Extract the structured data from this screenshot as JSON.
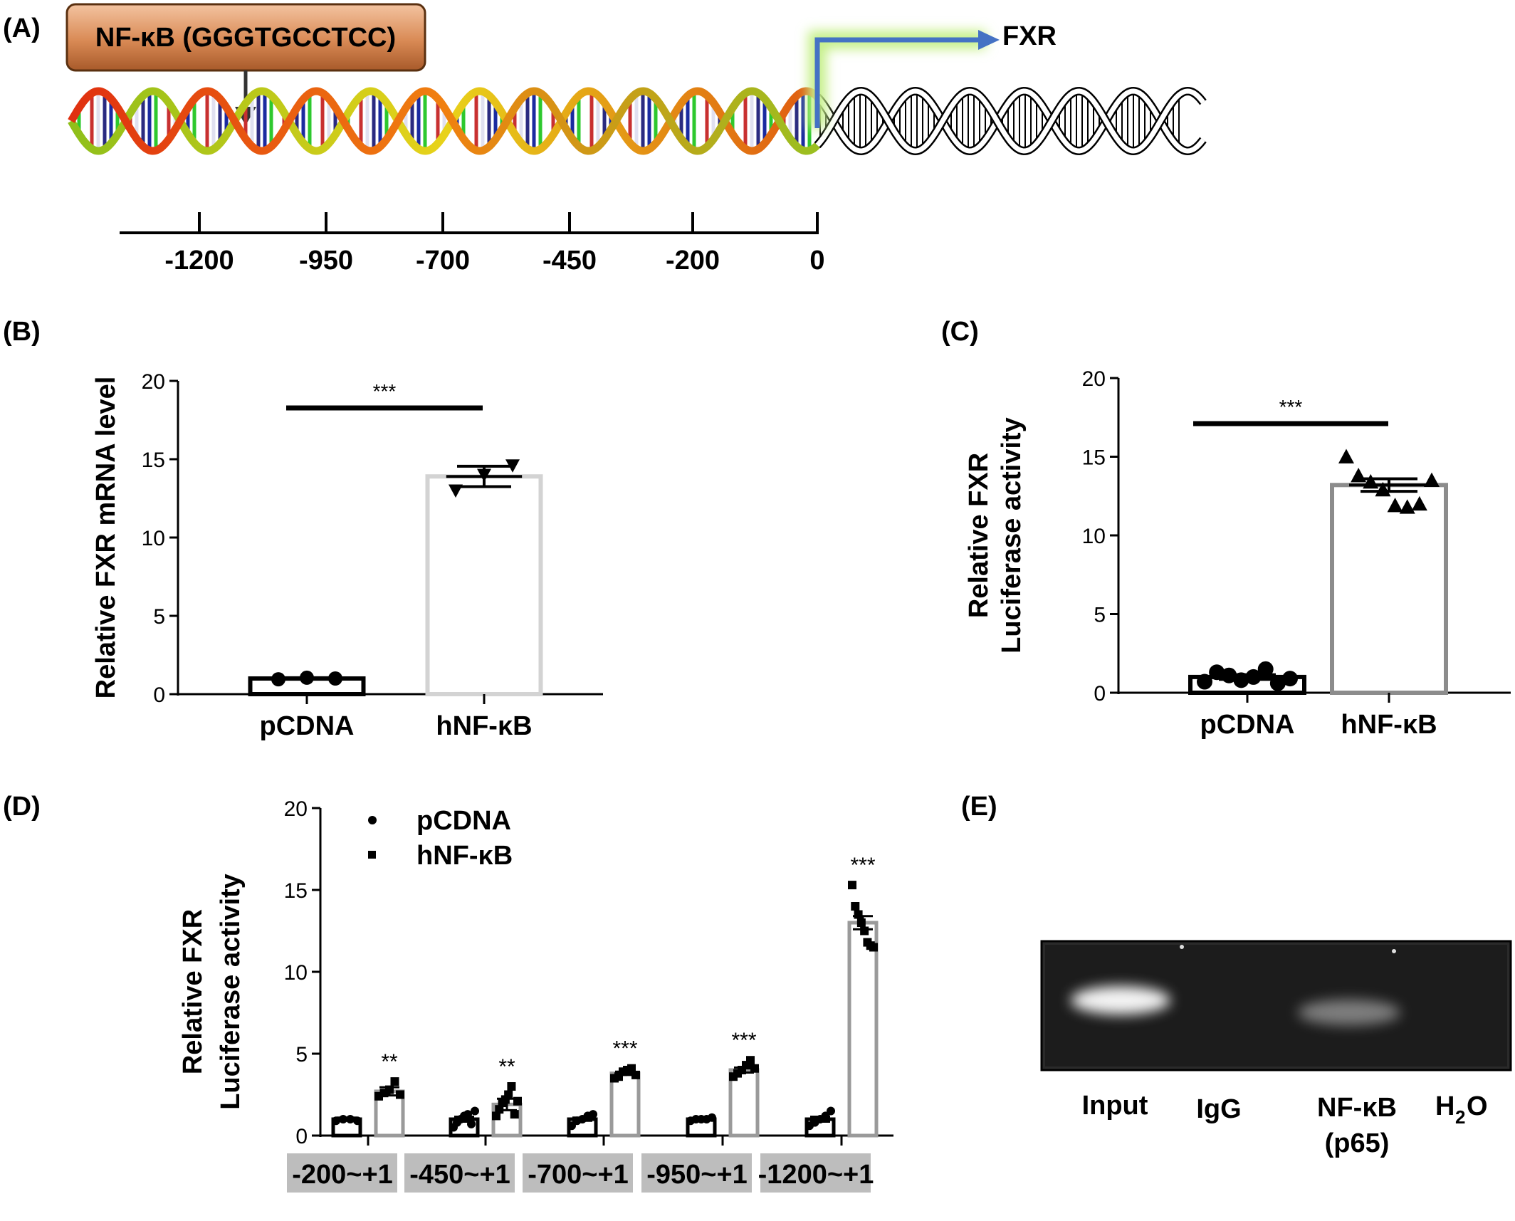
{
  "panels": {
    "A": {
      "label": "(A)",
      "tf_box": "NF-κB (GGGTGCCTCC)",
      "gene": "FXR",
      "ruler_ticks": [
        "-1200",
        "-950",
        "-700",
        "-450",
        "-200",
        "0"
      ]
    },
    "B": {
      "label": "(B)"
    },
    "C": {
      "label": "(C)"
    },
    "D": {
      "label": "(D)"
    },
    "E": {
      "label": "(E)",
      "lanes": [
        "Input",
        "IgG",
        "NF-κB",
        "H",
        "O"
      ],
      "lane_sub": "(p65)",
      "h2o_subscript": "2"
    }
  },
  "colors": {
    "tf_box_fill": "#d98a55",
    "arrow_blue": "#4472c4",
    "glow_green": "#c6f08a",
    "bar_black": "#000000",
    "bar_light_gray": "#d3d3d3",
    "bar_gray": "#8c8c8c",
    "label_bg_gray": "#bdbdbd",
    "gel_bg": "#2a2a2a"
  },
  "chart_data": [
    {
      "panel": "B",
      "type": "bar",
      "categories": [
        "pCDNA",
        "hNF-κB"
      ],
      "values": [
        1.0,
        13.9
      ],
      "errors": [
        0.05,
        0.65
      ],
      "points": [
        [
          0.95,
          1.05,
          1.0
        ],
        [
          13.0,
          14.0,
          14.6
        ]
      ],
      "ylabel": "Relative FXR mRNA level",
      "ylim": [
        0,
        20
      ],
      "yticks": [
        "0",
        "5",
        "10",
        "15",
        "20"
      ],
      "significance": "***"
    },
    {
      "panel": "C",
      "type": "bar",
      "categories": [
        "pCDNA",
        "hNF-κB"
      ],
      "values": [
        1.0,
        13.2
      ],
      "errors": [
        0.15,
        0.4
      ],
      "points": [
        [
          0.7,
          1.3,
          1.1,
          0.8,
          1.0,
          1.5,
          0.6,
          0.9
        ],
        [
          15.0,
          13.8,
          13.4,
          12.9,
          11.9,
          11.8,
          12.0,
          13.5
        ]
      ],
      "ylabel_lines": [
        "Relative FXR",
        "Luciferase activity"
      ],
      "ylim": [
        0,
        20
      ],
      "yticks": [
        "0",
        "5",
        "10",
        "15",
        "20"
      ],
      "significance": "***"
    },
    {
      "panel": "D",
      "type": "bar",
      "categories": [
        "-200~+1",
        "-450~+1",
        "-700~+1",
        "-950~+1",
        "-1200~+1"
      ],
      "series": [
        {
          "name": "pCDNA",
          "values": [
            1.0,
            1.0,
            1.0,
            1.0,
            1.0
          ],
          "errors": [
            0.1,
            0.15,
            0.1,
            0.05,
            0.15
          ]
        },
        {
          "name": "hNF-κB",
          "values": [
            2.7,
            1.9,
            3.8,
            4.0,
            13.0
          ],
          "errors": [
            0.25,
            0.35,
            0.1,
            0.15,
            0.4
          ]
        }
      ],
      "points": [
        [
          [
            0.9,
            1.0,
            1.0,
            0.9
          ],
          [
            2.4,
            2.6,
            2.8,
            3.3,
            2.5
          ]
        ],
        [
          [
            0.5,
            0.8,
            1.0,
            1.2,
            1.3,
            0.7,
            1.5
          ],
          [
            1.2,
            1.6,
            2.0,
            2.2,
            2.5,
            3.0,
            1.3,
            2.1
          ]
        ],
        [
          [
            0.6,
            0.9,
            1.0,
            1.2,
            1.3
          ],
          [
            3.5,
            3.6,
            3.9,
            4.0,
            4.1,
            3.7
          ]
        ],
        [
          [
            0.9,
            1.0,
            1.0,
            1.0,
            1.1
          ],
          [
            3.6,
            3.8,
            4.0,
            4.3,
            4.6,
            4.1
          ]
        ],
        [
          [
            0.6,
            0.8,
            1.0,
            1.2,
            1.5
          ],
          [
            15.3,
            14.0,
            13.5,
            13.0,
            12.5,
            11.8,
            11.6,
            11.5
          ]
        ]
      ],
      "significance": [
        "**",
        "**",
        "***",
        "***",
        "***"
      ],
      "ylabel_lines": [
        "Relative FXR",
        "Luciferase activity"
      ],
      "ylim": [
        0,
        20
      ],
      "yticks": [
        "0",
        "5",
        "10",
        "15",
        "20"
      ],
      "legend_position": "top-left"
    }
  ]
}
